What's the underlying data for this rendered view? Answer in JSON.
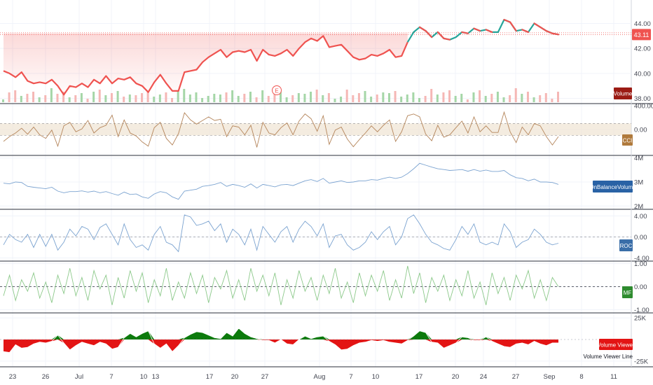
{
  "chart_data": [
    {
      "id": "price",
      "type": "line",
      "price_label": "43.11",
      "y_ticks": [
        "44.00",
        "42.00",
        "40.00",
        "38.00"
      ],
      "ylim": [
        37.7,
        45.2
      ],
      "ref_lines": [
        43.11,
        43.25
      ],
      "volume_label": "Volume",
      "earnings_marker": "E",
      "series": [
        {
          "values": [
            40.2,
            40.0,
            39.7,
            40.1,
            39.4,
            39.2,
            39.3,
            39.2,
            39.5,
            39.0,
            38.3,
            39.0,
            38.9,
            39.2,
            38.9,
            39.5,
            39.2,
            39.8,
            39.2,
            39.6,
            39.5,
            39.7,
            39.2,
            39.0,
            38.5,
            39.3,
            39.9,
            39.2,
            38.6,
            38.6,
            40.1,
            40.2,
            40.3,
            40.9,
            41.3,
            41.6,
            41.9,
            41.3,
            41.7,
            41.8,
            41.7,
            41.9,
            41.0,
            41.9,
            41.5,
            41.4,
            41.6,
            41.9,
            41.4,
            42.0,
            42.5,
            42.8,
            42.6,
            43.0,
            42.1,
            42.2,
            42.3,
            41.8,
            41.3,
            41.1,
            41.2,
            41.5,
            41.4,
            41.6,
            41.9,
            41.3,
            41.4,
            42.5,
            43.3,
            43.7,
            43.4,
            42.9,
            43.3,
            42.8,
            42.7,
            42.9,
            43.3,
            43.2,
            43.6,
            43.4,
            43.5,
            43.3,
            43.3,
            44.3,
            44.1,
            43.4,
            43.5,
            43.3,
            44.0,
            43.7,
            43.4,
            43.2,
            43.11
          ]
        }
      ]
    },
    {
      "id": "cci",
      "type": "line",
      "label": "CCI",
      "y_ticks": [
        "400.00",
        "0.00"
      ],
      "ylim": [
        -400,
        410
      ],
      "band": [
        -100,
        100
      ],
      "series": [
        {
          "values": [
            -200,
            -120,
            -60,
            20,
            -80,
            40,
            -90,
            -150,
            -10,
            -280,
            60,
            120,
            -40,
            10,
            150,
            -60,
            30,
            70,
            240,
            -120,
            160,
            -60,
            -110,
            -210,
            -280,
            30,
            120,
            -150,
            -260,
            -70,
            280,
            160,
            90,
            150,
            210,
            150,
            170,
            -120,
            60,
            40,
            -90,
            70,
            -300,
            120,
            -60,
            -90,
            30,
            110,
            -90,
            140,
            260,
            180,
            -30,
            230,
            -250,
            -10,
            40,
            -160,
            -290,
            -170,
            -60,
            60,
            -40,
            70,
            160,
            -200,
            -40,
            230,
            260,
            210,
            -80,
            -190,
            70,
            -130,
            -90,
            30,
            140,
            -60,
            210,
            -40,
            60,
            -50,
            -50,
            290,
            -40,
            -220,
            40,
            -90,
            100,
            60,
            -120,
            -260,
            -120
          ]
        }
      ]
    },
    {
      "id": "obv",
      "type": "line",
      "label": "OnBalanceVolume",
      "y_ticks": [
        "4M",
        "3M",
        "2M"
      ],
      "ylim": [
        1.95,
        4.05
      ],
      "series": [
        {
          "values": [
            2.95,
            2.92,
            3.0,
            2.98,
            2.82,
            2.78,
            2.75,
            2.72,
            2.78,
            2.62,
            2.55,
            2.6,
            2.6,
            2.63,
            2.58,
            2.62,
            2.55,
            2.6,
            2.52,
            2.45,
            2.58,
            2.48,
            2.5,
            2.38,
            2.32,
            2.5,
            2.6,
            2.55,
            2.38,
            2.28,
            2.62,
            2.66,
            2.7,
            2.82,
            2.85,
            2.9,
            2.98,
            2.82,
            2.9,
            2.85,
            2.78,
            2.92,
            2.75,
            2.9,
            2.85,
            2.8,
            2.88,
            2.9,
            2.85,
            2.95,
            3.05,
            3.1,
            3.02,
            3.15,
            2.95,
            3.0,
            3.05,
            2.98,
            3.0,
            3.05,
            3.05,
            3.1,
            3.08,
            3.15,
            3.2,
            3.15,
            3.2,
            3.35,
            3.55,
            3.78,
            3.7,
            3.62,
            3.55,
            3.52,
            3.48,
            3.5,
            3.52,
            3.45,
            3.52,
            3.45,
            3.5,
            3.44,
            3.44,
            3.48,
            3.3,
            3.18,
            3.15,
            3.05,
            3.12,
            3.0,
            3.0,
            2.98,
            2.9
          ]
        }
      ]
    },
    {
      "id": "roc",
      "type": "line",
      "label": "ROC",
      "y_ticks": [
        "4.00",
        "0.00",
        "-4.00"
      ],
      "ylim": [
        -4.2,
        5.0
      ],
      "series": [
        {
          "values": [
            -1.5,
            0.5,
            -0.5,
            -1.0,
            0.5,
            -2.0,
            0.5,
            -1.8,
            0.5,
            -2.5,
            -1.0,
            1.5,
            0.2,
            2.0,
            1.5,
            -0.5,
            1.8,
            2.5,
            0.5,
            -1.5,
            2.5,
            -0.5,
            -2.0,
            -1.5,
            -2.5,
            0.5,
            2.0,
            -1.0,
            -1.5,
            -2.8,
            4.2,
            3.8,
            2.2,
            2.5,
            3.0,
            1.2,
            2.5,
            -1.0,
            1.5,
            0.5,
            -1.5,
            1.5,
            -2.5,
            2.0,
            0.5,
            -1.0,
            1.0,
            2.0,
            -1.0,
            1.5,
            3.0,
            2.0,
            0.2,
            2.5,
            -2.0,
            0.2,
            0.5,
            -1.5,
            -2.5,
            -2.0,
            -1.0,
            1.0,
            -0.5,
            1.0,
            2.0,
            -1.5,
            0.0,
            3.5,
            4.2,
            2.5,
            0.5,
            -1.0,
            -1.5,
            -2.2,
            -2.5,
            -0.5,
            2.0,
            0.5,
            2.5,
            -1.0,
            -1.5,
            -1.0,
            -1.5,
            2.5,
            1.0,
            -2.0,
            -1.0,
            -0.5,
            1.5,
            0.5,
            -1.0,
            -1.5,
            -1.2
          ]
        }
      ]
    },
    {
      "id": "mf",
      "type": "line",
      "label": "MF",
      "y_ticks": [
        "1.00",
        "0.00",
        "-1.00"
      ],
      "ylim": [
        -1.05,
        1.05
      ],
      "series": [
        {
          "values": [
            -0.4,
            0.5,
            -0.6,
            0.3,
            -0.2,
            0.6,
            -0.5,
            0.2,
            -0.7,
            0.5,
            -0.3,
            0.8,
            -0.4,
            0.4,
            -0.6,
            0.7,
            -0.1,
            0.5,
            -0.8,
            0.4,
            -0.5,
            0.7,
            -0.2,
            0.6,
            -0.7,
            0.3,
            -0.4,
            0.8,
            -0.6,
            0.2,
            -0.5,
            0.6,
            -0.3,
            0.5,
            -0.7,
            0.4,
            -0.1,
            0.7,
            -0.5,
            0.3,
            -0.6,
            0.8,
            -0.2,
            0.5,
            -0.4,
            0.6,
            -0.8,
            0.3,
            -0.5,
            0.7,
            -0.2,
            0.4,
            -0.6,
            0.5,
            -0.3,
            0.8,
            -0.5,
            0.2,
            -0.7,
            0.6,
            -0.4,
            0.5,
            -0.2,
            0.7,
            -0.6,
            0.3,
            -0.5,
            0.9,
            -0.3,
            0.6,
            -0.7,
            0.4,
            -0.2,
            0.5,
            -0.6,
            0.3,
            -0.4,
            0.7,
            -0.5,
            0.2,
            -0.8,
            0.6,
            -0.3,
            0.4,
            -0.6,
            0.5,
            -0.1,
            0.7,
            -0.5,
            0.3,
            -0.6,
            0.4,
            0.0
          ]
        }
      ]
    },
    {
      "id": "volume_viewer",
      "type": "area",
      "label": "Volume Viewer",
      "line_label": "Volume Viewer Line",
      "y_ticks": [
        "25K",
        "-25K"
      ],
      "ylim": [
        -30,
        30
      ],
      "series": [
        {
          "values": [
            -14,
            -15,
            -6,
            -10,
            -9,
            -5,
            -3,
            -4,
            -2,
            5,
            -4,
            -12,
            -7,
            -3,
            -5,
            -7,
            -3,
            -5,
            -11,
            -9,
            2,
            7,
            3,
            7,
            10,
            -5,
            -10,
            -5,
            -14,
            -7,
            2,
            6,
            9,
            8,
            5,
            2,
            1,
            8,
            4,
            13,
            7,
            3,
            1,
            -1,
            -1,
            -4,
            0,
            -5,
            -6,
            0,
            4,
            1,
            3,
            4,
            -2,
            -6,
            -12,
            -11,
            -7,
            -4,
            -3,
            -1,
            -2,
            -1,
            -3,
            -4,
            -5,
            -1,
            4,
            10,
            8,
            -3,
            -4,
            -10,
            -7,
            -4,
            3,
            2,
            -1,
            -1,
            3,
            -2,
            -5,
            -8,
            -9,
            -5,
            -4,
            -6,
            -2,
            -5,
            -7,
            -4,
            -4
          ]
        }
      ]
    }
  ],
  "x_axis": {
    "tick_labels": [
      "23",
      "26",
      "Jul",
      "7",
      "10",
      "13",
      "17",
      "20",
      "27",
      "Aug",
      "7",
      "10",
      "17",
      "20",
      "24",
      "27",
      "Sep",
      "8",
      "11"
    ]
  },
  "colors": {
    "down": "#ef5350",
    "up": "#26a69a",
    "cci": "#b5865c",
    "cci_badge": "#b07a3c",
    "obv": "#7ba3d0",
    "obv_badge": "#2962a5",
    "roc": "#7ba3d0",
    "roc_badge": "#3a6ea8",
    "mf": "#8cc98a",
    "mf_badge": "#2e8b2e",
    "vv_up": "#0c7a0c",
    "vv_down": "#e31414",
    "volume_badge": "#9b1b14",
    "price_badge": "#ef5350"
  }
}
